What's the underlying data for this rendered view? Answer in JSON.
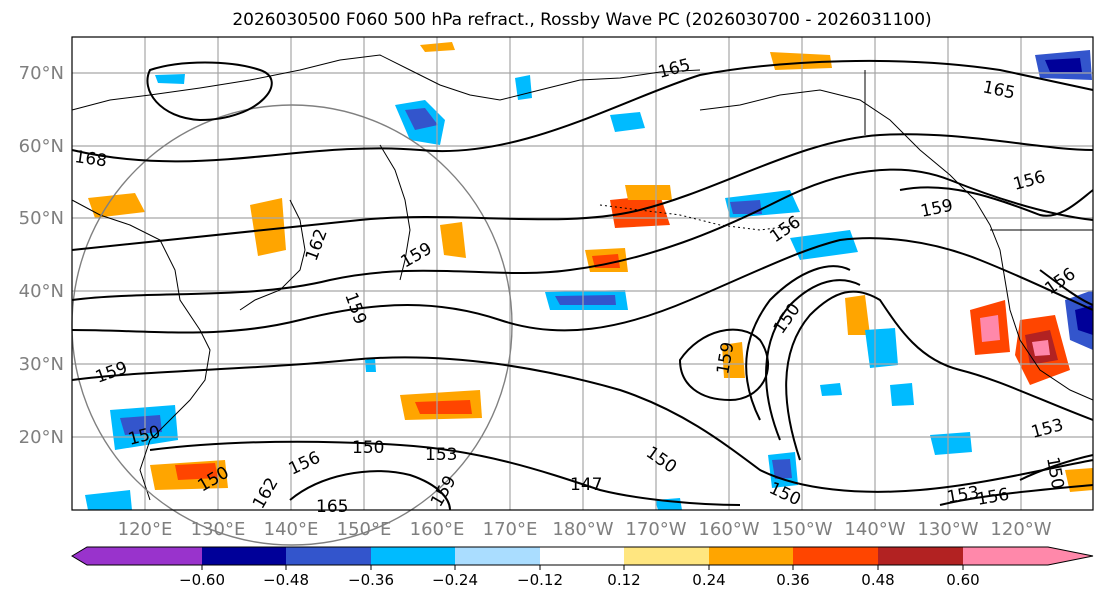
{
  "title": "2026030500 F060 500 hPa refract., Rossby Wave PC (2026030700 - 2026031100)",
  "lat_labels": [
    "70°N",
    "60°N",
    "50°N",
    "40°N",
    "30°N",
    "20°N"
  ],
  "lon_labels": [
    "120°E",
    "130°E",
    "140°E",
    "150°E",
    "160°E",
    "170°E",
    "180°W",
    "170°W",
    "160°W",
    "150°W",
    "140°W",
    "130°W",
    "120°W"
  ],
  "contour_labels": [
    "165",
    "165",
    "168",
    "156",
    "159",
    "156",
    "162",
    "159",
    "159",
    "150",
    "159",
    "150",
    "159",
    "156",
    "153",
    "150",
    "150",
    "153",
    "150",
    "156",
    "147",
    "150",
    "159",
    "153",
    "156",
    "165",
    "162",
    "150"
  ],
  "colorbar": {
    "ticks": [
      "−0.60",
      "−0.48",
      "−0.36",
      "−0.24",
      "−0.12",
      "0.12",
      "0.24",
      "0.36",
      "0.48",
      "0.60"
    ],
    "colors": [
      "#9933cc",
      "#000099",
      "#3355cc",
      "#00bbff",
      "#aaddff",
      "#ffffff",
      "#ffe680",
      "#ffa500",
      "#ff4500",
      "#b22222",
      "#ff88aa"
    ]
  },
  "colors": {
    "land_outline": "#000000",
    "grid": "#a6a6a6",
    "contour": "#000000",
    "circle": "#808080",
    "axis_label": "#7f7f7f"
  }
}
